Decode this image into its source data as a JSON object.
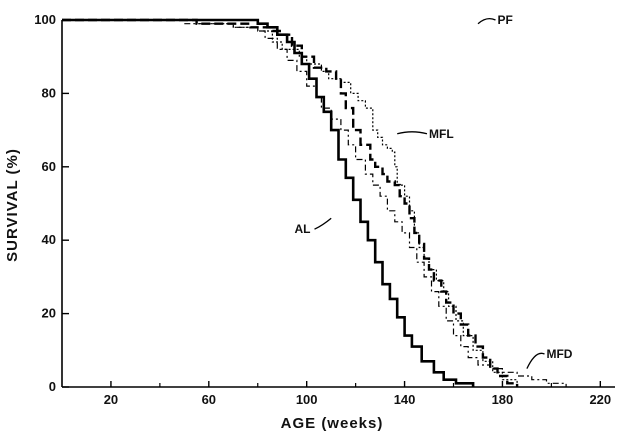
{
  "chart_data": {
    "type": "line",
    "title": "",
    "xlabel": "AGE (weeks)",
    "ylabel": "SURVIVAL (%)",
    "xlim": [
      0,
      226
    ],
    "ylim": [
      0,
      100
    ],
    "xticks": [
      20,
      60,
      100,
      140,
      180,
      220
    ],
    "yticks": [
      0,
      20,
      40,
      60,
      80,
      100
    ],
    "grid": false,
    "legend": "none (series labeled directly on plot)",
    "step": true,
    "series": [
      {
        "name": "AL",
        "style": "solid-thick",
        "color": "#000000",
        "points": [
          [
            0,
            100
          ],
          [
            70,
            100
          ],
          [
            80,
            99
          ],
          [
            84,
            98
          ],
          [
            88,
            96
          ],
          [
            92,
            94
          ],
          [
            95,
            91
          ],
          [
            98,
            88
          ],
          [
            101,
            84
          ],
          [
            104,
            79
          ],
          [
            107,
            75
          ],
          [
            110,
            70
          ],
          [
            113,
            62
          ],
          [
            116,
            57
          ],
          [
            119,
            51
          ],
          [
            122,
            45
          ],
          [
            125,
            40
          ],
          [
            128,
            34
          ],
          [
            131,
            28
          ],
          [
            134,
            24
          ],
          [
            137,
            19
          ],
          [
            140,
            14
          ],
          [
            143,
            11
          ],
          [
            147,
            7
          ],
          [
            152,
            4
          ],
          [
            156,
            2
          ],
          [
            161,
            1
          ],
          [
            168,
            0
          ]
        ]
      },
      {
        "name": "PF",
        "style": "dashed-thick",
        "color": "#000000",
        "points": [
          [
            0,
            100
          ],
          [
            50,
            100
          ],
          [
            55,
            99
          ],
          [
            68,
            99
          ],
          [
            77,
            98
          ],
          [
            86,
            97
          ],
          [
            90,
            96
          ],
          [
            94,
            93
          ],
          [
            98,
            90
          ],
          [
            103,
            87
          ],
          [
            108,
            86
          ],
          [
            112,
            84
          ],
          [
            114,
            80
          ],
          [
            116,
            76
          ],
          [
            119,
            70
          ],
          [
            122,
            66
          ],
          [
            126,
            62
          ],
          [
            128,
            60
          ],
          [
            131,
            58
          ],
          [
            133,
            56
          ],
          [
            136,
            55
          ],
          [
            138,
            52
          ],
          [
            140,
            50
          ],
          [
            142,
            46
          ],
          [
            144,
            42
          ],
          [
            146,
            39
          ],
          [
            148,
            35
          ],
          [
            150,
            32
          ],
          [
            152,
            29
          ],
          [
            155,
            26
          ],
          [
            157,
            23
          ],
          [
            160,
            20
          ],
          [
            163,
            17
          ],
          [
            166,
            14
          ],
          [
            169,
            11
          ],
          [
            172,
            8
          ],
          [
            175,
            5
          ],
          [
            178,
            3
          ],
          [
            182,
            1
          ],
          [
            186,
            0
          ]
        ]
      },
      {
        "name": "MFL",
        "style": "dotted",
        "color": "#000000",
        "points": [
          [
            0,
            100
          ],
          [
            45,
            100
          ],
          [
            55,
            99
          ],
          [
            70,
            98
          ],
          [
            80,
            97
          ],
          [
            86,
            94
          ],
          [
            90,
            92
          ],
          [
            97,
            90
          ],
          [
            100,
            88
          ],
          [
            106,
            86
          ],
          [
            109,
            84
          ],
          [
            114,
            83
          ],
          [
            118,
            80
          ],
          [
            121,
            78
          ],
          [
            124,
            76
          ],
          [
            127,
            70
          ],
          [
            129,
            68
          ],
          [
            131,
            66
          ],
          [
            133,
            65
          ],
          [
            135,
            64
          ],
          [
            136,
            60
          ],
          [
            137,
            55
          ],
          [
            140,
            52
          ],
          [
            142,
            48
          ],
          [
            144,
            42
          ],
          [
            146,
            38
          ],
          [
            148,
            35
          ],
          [
            150,
            32
          ],
          [
            153,
            29
          ],
          [
            156,
            26
          ],
          [
            158,
            22
          ],
          [
            161,
            18
          ],
          [
            164,
            14
          ],
          [
            168,
            10
          ],
          [
            172,
            7
          ],
          [
            176,
            4
          ],
          [
            180,
            2
          ],
          [
            186,
            0
          ]
        ]
      },
      {
        "name": "MFD",
        "style": "dash-dot",
        "color": "#000000",
        "points": [
          [
            0,
            100
          ],
          [
            40,
            100
          ],
          [
            50,
            99
          ],
          [
            70,
            98
          ],
          [
            80,
            97
          ],
          [
            83,
            95
          ],
          [
            88,
            92
          ],
          [
            92,
            89
          ],
          [
            96,
            86
          ],
          [
            100,
            82
          ],
          [
            104,
            79
          ],
          [
            106,
            76
          ],
          [
            110,
            73
          ],
          [
            114,
            70
          ],
          [
            117,
            66
          ],
          [
            120,
            62
          ],
          [
            124,
            58
          ],
          [
            127,
            55
          ],
          [
            130,
            52
          ],
          [
            133,
            48
          ],
          [
            136,
            45
          ],
          [
            139,
            42
          ],
          [
            142,
            38
          ],
          [
            145,
            34
          ],
          [
            148,
            30
          ],
          [
            151,
            26
          ],
          [
            154,
            22
          ],
          [
            157,
            18
          ],
          [
            160,
            14
          ],
          [
            163,
            11
          ],
          [
            166,
            8
          ],
          [
            170,
            6
          ],
          [
            175,
            5
          ],
          [
            180,
            4
          ],
          [
            186,
            3
          ],
          [
            192,
            2
          ],
          [
            198,
            1
          ],
          [
            206,
            0
          ]
        ]
      }
    ],
    "annotations": [
      {
        "text": "PF",
        "x": 178,
        "y": 100,
        "target": [
          170,
          99
        ]
      },
      {
        "text": "MFL",
        "x": 150,
        "y": 69,
        "target": [
          137,
          69
        ]
      },
      {
        "text": "AL",
        "x": 95,
        "y": 43,
        "target": [
          110,
          46
        ]
      },
      {
        "text": "MFD",
        "x": 198,
        "y": 9,
        "target": [
          190,
          5
        ]
      }
    ]
  }
}
